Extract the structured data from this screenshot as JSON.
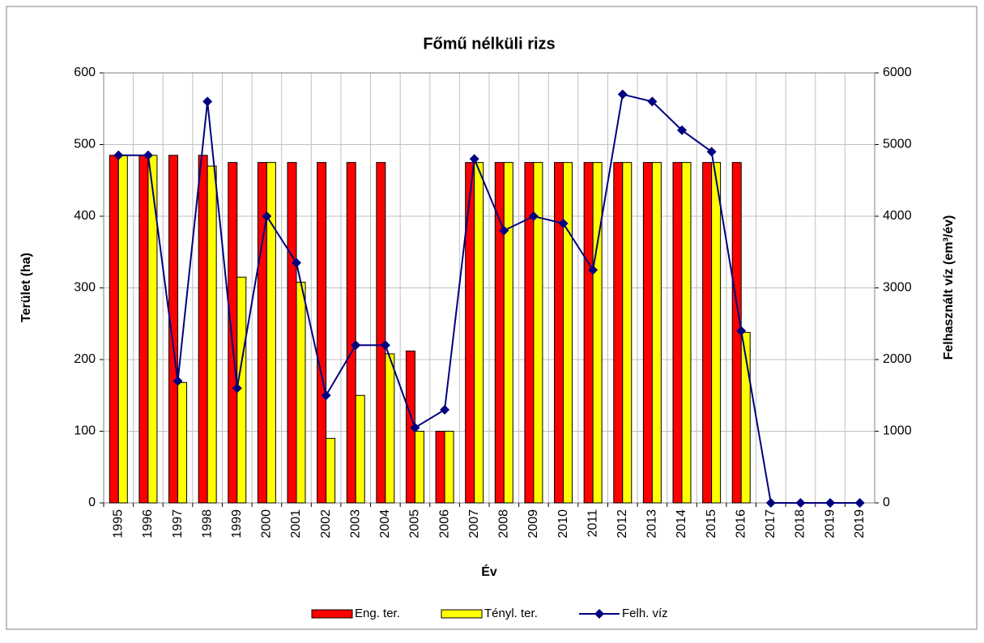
{
  "chart_data": {
    "type": "bar",
    "title": "Főmű nélküli rizs",
    "x_label": "Év",
    "y_label": "Terület (ha)",
    "y2_label": "Felhasznált víz (em³/év)",
    "categories": [
      "1995",
      "1996",
      "1997",
      "1998",
      "1999",
      "2000",
      "2001",
      "2002",
      "2003",
      "2004",
      "2005",
      "2006",
      "2007",
      "2008",
      "2009",
      "2010",
      "2011",
      "2012",
      "2013",
      "2014",
      "2015",
      "2016",
      "2017",
      "2018",
      "2019",
      "2019"
    ],
    "series": [
      {
        "name": "Eng. ter.",
        "type": "bar",
        "color": "#ff0000",
        "values": [
          485,
          485,
          485,
          485,
          475,
          475,
          475,
          475,
          475,
          475,
          212,
          100,
          475,
          475,
          475,
          475,
          475,
          475,
          475,
          475,
          475,
          475,
          0,
          0,
          0,
          0
        ]
      },
      {
        "name": "Tényl. ter.",
        "type": "bar",
        "color": "#ffff00",
        "values": [
          485,
          485,
          168,
          470,
          315,
          475,
          308,
          90,
          150,
          208,
          100,
          100,
          475,
          475,
          475,
          475,
          475,
          475,
          475,
          475,
          475,
          238,
          0,
          0,
          0,
          0
        ]
      },
      {
        "name": "Felh. víz",
        "type": "line",
        "axis": "y2",
        "color": "#000080",
        "values": [
          4850,
          4850,
          1700,
          5600,
          1600,
          4000,
          3350,
          1500,
          2200,
          2200,
          1050,
          1300,
          4800,
          3800,
          4000,
          3900,
          3250,
          5700,
          5600,
          5200,
          4900,
          2400,
          0,
          0,
          0,
          0
        ]
      }
    ],
    "ylim": [
      0,
      600
    ],
    "yticks": [
      0,
      100,
      200,
      300,
      400,
      500,
      600
    ],
    "y2lim": [
      0,
      6000
    ],
    "y2ticks": [
      0,
      1000,
      2000,
      3000,
      4000,
      5000,
      6000
    ],
    "grid": true,
    "legend": "bottom"
  }
}
